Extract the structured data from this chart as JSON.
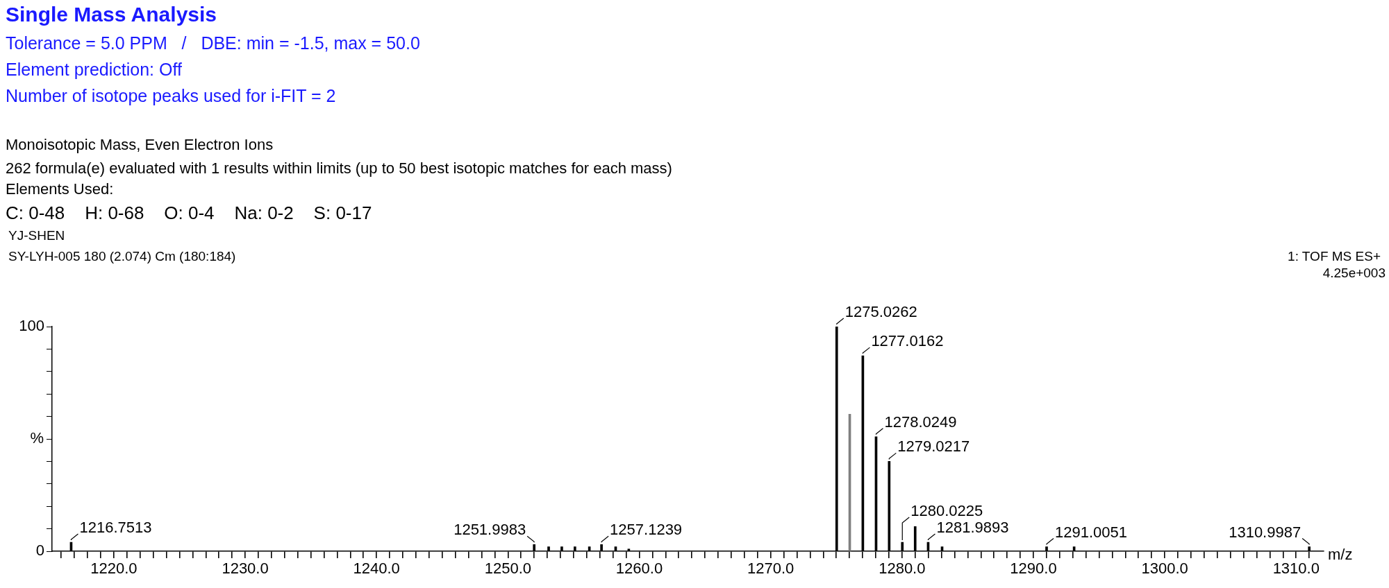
{
  "chart_data": {
    "type": "bar",
    "title": "Single Mass Analysis",
    "subtitle": "Tolerance = 5.0 PPM   /   DBE: min = -1.5, max = 50.0\nElement prediction: Off\nNumber of isotope peaks used for i-FIT = 2",
    "annotations": [
      "Monoisotopic Mass, Even Electron Ions",
      "262 formula(e) evaluated with 1 results within limits (up to 50 best isotopic matches for each mass)",
      "Elements Used:",
      "C: 0-48    H: 0-68    O: 0-4    Na: 0-2    S: 0-17",
      "YJ-SHEN",
      "SY-LYH-005 180 (2.074) Cm (180:184)",
      "1: TOF MS ES+",
      "4.25e+003",
      {
        "text": "1216.7513",
        "x": 1216.7513,
        "y": 4
      },
      {
        "text": "1251.9983",
        "x": 1251.9983,
        "y": 3
      },
      {
        "text": "1257.1239",
        "x": 1257.1239,
        "y": 3
      },
      {
        "text": "1275.0262",
        "x": 1275.0262,
        "y": 100
      },
      {
        "text": "1277.0162",
        "x": 1277.0162,
        "y": 87
      },
      {
        "text": "1278.0249",
        "x": 1278.0249,
        "y": 51
      },
      {
        "text": "1279.0217",
        "x": 1279.0217,
        "y": 40
      },
      {
        "text": "1280.0225",
        "x": 1280.0225,
        "y": 4
      },
      {
        "text": "1281.9893",
        "x": 1281.9893,
        "y": 4
      },
      {
        "text": "1291.0051",
        "x": 1291.0051,
        "y": 2
      },
      {
        "text": "1310.9987",
        "x": 1310.9987,
        "y": 2
      }
    ],
    "xlabel": "m/z",
    "ylabel": "%",
    "x": [
      1216.7513,
      1251.9983,
      1253.1,
      1254.1,
      1255.1,
      1256.2,
      1257.1239,
      1258.2,
      1259.2,
      1275.0262,
      1276.02,
      1277.0162,
      1278.0249,
      1279.0217,
      1280.0225,
      1281.0,
      1281.9893,
      1283.05,
      1291.0051,
      1293.1,
      1310.9987
    ],
    "values": [
      4,
      3,
      2,
      2,
      2,
      2,
      3,
      2,
      1,
      100,
      61,
      87,
      51,
      40,
      4,
      11,
      4,
      2,
      2,
      2,
      2
    ],
    "colors": [
      "#000000",
      "#000000",
      "#000000",
      "#000000",
      "#000000",
      "#000000",
      "#000000",
      "#000000",
      "#000000",
      "#000000",
      "#808080",
      "#000000",
      "#000000",
      "#000000",
      "#000000",
      "#000000",
      "#000000",
      "#000000",
      "#000000",
      "#000000",
      "#000000"
    ],
    "xlim": [
      1215.3,
      1312.1
    ],
    "ylim": [
      0,
      100
    ],
    "yticks": [
      0,
      {
        "value": 10,
        "label": null
      },
      {
        "value": 20,
        "label": null
      },
      {
        "value": 30,
        "label": null
      },
      {
        "value": 40,
        "label": null
      },
      {
        "value": 50,
        "label": null
      },
      {
        "value": 60,
        "label": null
      },
      {
        "value": 70,
        "label": null
      },
      {
        "value": 80,
        "label": null
      },
      {
        "value": 90,
        "label": null
      },
      100
    ],
    "xticks": [
      {
        "value": 1216,
        "label": null
      },
      {
        "value": 1217,
        "label": null
      },
      {
        "value": 1218,
        "label": null
      },
      {
        "value": 1219,
        "label": null
      },
      {
        "value": 1220,
        "label": "1220.0"
      },
      {
        "value": 1221,
        "label": null
      },
      {
        "value": 1222,
        "label": null
      },
      {
        "value": 1223,
        "label": null
      },
      {
        "value": 1224,
        "label": null
      },
      {
        "value": 1225,
        "label": null
      },
      {
        "value": 1226,
        "label": null
      },
      {
        "value": 1227,
        "label": null
      },
      {
        "value": 1228,
        "label": null
      },
      {
        "value": 1229,
        "label": null
      },
      {
        "value": 1230,
        "label": "1230.0"
      },
      {
        "value": 1231,
        "label": null
      },
      {
        "value": 1232,
        "label": null
      },
      {
        "value": 1233,
        "label": null
      },
      {
        "value": 1234,
        "label": null
      },
      {
        "value": 1235,
        "label": null
      },
      {
        "value": 1236,
        "label": null
      },
      {
        "value": 1237,
        "label": null
      },
      {
        "value": 1238,
        "label": null
      },
      {
        "value": 1239,
        "label": null
      },
      {
        "value": 1240,
        "label": "1240.0"
      },
      {
        "value": 1241,
        "label": null
      },
      {
        "value": 1242,
        "label": null
      },
      {
        "value": 1243,
        "label": null
      },
      {
        "value": 1244,
        "label": null
      },
      {
        "value": 1245,
        "label": null
      },
      {
        "value": 1246,
        "label": null
      },
      {
        "value": 1247,
        "label": null
      },
      {
        "value": 1248,
        "label": null
      },
      {
        "value": 1249,
        "label": null
      },
      {
        "value": 1250,
        "label": "1250.0"
      },
      {
        "value": 1251,
        "label": null
      },
      {
        "value": 1252,
        "label": null
      },
      {
        "value": 1253,
        "label": null
      },
      {
        "value": 1254,
        "label": null
      },
      {
        "value": 1255,
        "label": null
      },
      {
        "value": 1256,
        "label": null
      },
      {
        "value": 1257,
        "label": null
      },
      {
        "value": 1258,
        "label": null
      },
      {
        "value": 1259,
        "label": null
      },
      {
        "value": 1260,
        "label": "1260.0"
      },
      {
        "value": 1261,
        "label": null
      },
      {
        "value": 1262,
        "label": null
      },
      {
        "value": 1263,
        "label": null
      },
      {
        "value": 1264,
        "label": null
      },
      {
        "value": 1265,
        "label": null
      },
      {
        "value": 1266,
        "label": null
      },
      {
        "value": 1267,
        "label": null
      },
      {
        "value": 1268,
        "label": null
      },
      {
        "value": 1269,
        "label": null
      },
      {
        "value": 1270,
        "label": "1270.0"
      },
      {
        "value": 1271,
        "label": null
      },
      {
        "value": 1272,
        "label": null
      },
      {
        "value": 1273,
        "label": null
      },
      {
        "value": 1274,
        "label": null
      },
      {
        "value": 1275,
        "label": null
      },
      {
        "value": 1276,
        "label": null
      },
      {
        "value": 1277,
        "label": null
      },
      {
        "value": 1278,
        "label": null
      },
      {
        "value": 1279,
        "label": null
      },
      {
        "value": 1280,
        "label": "1280.0"
      },
      {
        "value": 1281,
        "label": null
      },
      {
        "value": 1282,
        "label": null
      },
      {
        "value": 1283,
        "label": null
      },
      {
        "value": 1284,
        "label": null
      },
      {
        "value": 1285,
        "label": null
      },
      {
        "value": 1286,
        "label": null
      },
      {
        "value": 1287,
        "label": null
      },
      {
        "value": 1288,
        "label": null
      },
      {
        "value": 1289,
        "label": null
      },
      {
        "value": 1290,
        "label": "1290.0"
      },
      {
        "value": 1291,
        "label": null
      },
      {
        "value": 1292,
        "label": null
      },
      {
        "value": 1293,
        "label": null
      },
      {
        "value": 1294,
        "label": null
      },
      {
        "value": 1295,
        "label": null
      },
      {
        "value": 1296,
        "label": null
      },
      {
        "value": 1297,
        "label": null
      },
      {
        "value": 1298,
        "label": null
      },
      {
        "value": 1299,
        "label": null
      },
      {
        "value": 1300,
        "label": "1300.0"
      },
      {
        "value": 1301,
        "label": null
      },
      {
        "value": 1302,
        "label": null
      },
      {
        "value": 1303,
        "label": null
      },
      {
        "value": 1304,
        "label": null
      },
      {
        "value": 1305,
        "label": null
      },
      {
        "value": 1306,
        "label": null
      },
      {
        "value": 1307,
        "label": null
      },
      {
        "value": 1308,
        "label": null
      },
      {
        "value": 1309,
        "label": null
      },
      {
        "value": 1310,
        "label": "1310.0"
      },
      {
        "value": 1311,
        "label": null
      }
    ]
  }
}
